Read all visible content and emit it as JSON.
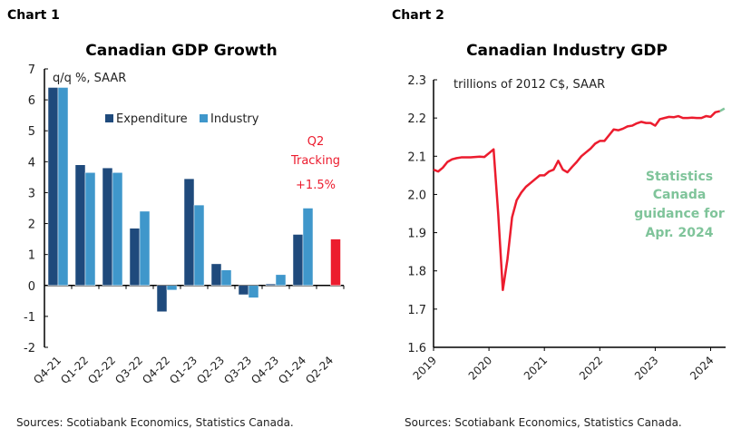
{
  "chart_data": [
    {
      "label": "Chart 1",
      "type": "bar",
      "title": "Canadian GDP Growth",
      "ylabel": "q/q %, SAAR",
      "ylim": [
        -2,
        7
      ],
      "yticks": [
        "-2",
        "-1",
        "0",
        "1",
        "2",
        "3",
        "4",
        "5",
        "6",
        "7"
      ],
      "categories": [
        "Q4-21",
        "Q1-22",
        "Q2-22",
        "Q3-22",
        "Q4-22",
        "Q1-23",
        "Q2-23",
        "Q3-23",
        "Q4-23",
        "Q1-24",
        "Q2-24"
      ],
      "series": [
        {
          "name": "Expenditure",
          "color": "#1f4a7c",
          "values": [
            6.4,
            3.9,
            3.8,
            1.85,
            -0.85,
            3.45,
            0.7,
            -0.3,
            0.05,
            1.65,
            null
          ]
        },
        {
          "name": "Industry",
          "color": "#3f97cb",
          "values": [
            6.4,
            3.65,
            3.65,
            2.4,
            -0.15,
            2.6,
            0.5,
            -0.4,
            0.35,
            2.5,
            null
          ]
        },
        {
          "name": "Q2 Tracking",
          "color": "#ec1c2e",
          "values": [
            null,
            null,
            null,
            null,
            null,
            null,
            null,
            null,
            null,
            null,
            1.5
          ]
        }
      ],
      "annotation": {
        "lines": [
          "Q2",
          "Tracking",
          "+1.5%"
        ],
        "color": "#ec1c2e"
      },
      "legend": "top-center",
      "source": "Sources: Scotiabank Economics, Statistics Canada."
    },
    {
      "label": "Chart 2",
      "type": "line",
      "title": "Canadian Industry GDP",
      "ylabel": "trillions of 2012 C$, SAAR",
      "ylim": [
        1.6,
        2.3
      ],
      "yticks": [
        "1.6",
        "1.7",
        "1.8",
        "1.9",
        "2.0",
        "2.1",
        "2.2",
        "2.3"
      ],
      "xticks": [
        "2019",
        "2020",
        "2021",
        "2022",
        "2023",
        "2024"
      ],
      "x_start": "2019-01",
      "x_freq": "monthly",
      "series": [
        {
          "color": "#ec1c2e",
          "values": [
            2.065,
            2.06,
            2.07,
            2.085,
            2.092,
            2.095,
            2.097,
            2.097,
            2.097,
            2.098,
            2.099,
            2.098,
            2.108,
            2.118,
            1.95,
            1.75,
            1.83,
            1.94,
            1.985,
            2.005,
            2.02,
            2.03,
            2.04,
            2.05,
            2.05,
            2.06,
            2.065,
            2.088,
            2.065,
            2.058,
            2.072,
            2.085,
            2.1,
            2.11,
            2.12,
            2.133,
            2.14,
            2.14,
            2.155,
            2.17,
            2.168,
            2.172,
            2.178,
            2.18,
            2.186,
            2.19,
            2.187,
            2.187,
            2.18,
            2.197,
            2.2,
            2.203,
            2.202,
            2.205,
            2.2,
            2.2,
            2.201,
            2.2,
            2.2,
            2.205,
            2.203,
            2.215,
            2.218
          ]
        },
        {
          "color": "#7fc49a",
          "values_from": "2024-03",
          "values": [
            2.218,
            2.225
          ]
        }
      ],
      "annotation": {
        "lines": [
          "Statistics",
          "Canada",
          "guidance for",
          "Apr. 2024"
        ],
        "color": "#7fc49a"
      },
      "source": "Sources: Scotiabank Economics, Statistics Canada."
    }
  ]
}
